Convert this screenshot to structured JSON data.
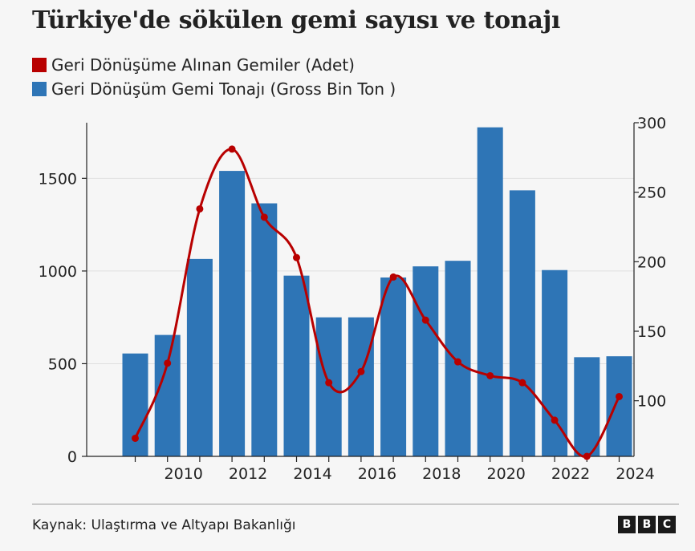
{
  "title": "Türkiye'de sökülen gemi sayısı ve tonajı",
  "legend": [
    {
      "label": "Geri Dönüşüme Alınan Gemiler (Adet)",
      "color": "#b80000"
    },
    {
      "label": "Geri Dönüşüm Gemi Tonajı (Gross Bin Ton )",
      "color": "#2e75b6"
    }
  ],
  "source": "Kaynak: Ulaştırma ve Altyapı Bakanlığı",
  "logo": [
    "B",
    "B",
    "C"
  ],
  "chart_data": {
    "type": "bar+line",
    "x": [
      2009,
      2010,
      2011,
      2012,
      2013,
      2014,
      2015,
      2016,
      2017,
      2018,
      2019,
      2020,
      2021,
      2022,
      2023,
      2024
    ],
    "x_tick_labels": [
      "2010",
      "2012",
      "2014",
      "2016",
      "2018",
      "2020",
      "2022",
      "2024"
    ],
    "series": [
      {
        "name": "Geri Dönüşüm Gemi Tonajı (Gross Bin Ton )",
        "type": "bar",
        "axis": "left",
        "color": "#2e75b6",
        "values": [
          555,
          655,
          1065,
          1540,
          1365,
          975,
          750,
          750,
          965,
          1025,
          1055,
          1775,
          1435,
          1005,
          535,
          540
        ]
      },
      {
        "name": "Geri Dönüşüme Alınan Gemiler (Adet)",
        "type": "line",
        "axis": "right",
        "color": "#b80000",
        "values": [
          73,
          127,
          238,
          281,
          232,
          203,
          113,
          121,
          189,
          158,
          128,
          118,
          113,
          86,
          60,
          103
        ]
      }
    ],
    "left_axis": {
      "ticks": [
        0,
        500,
        1000,
        1500
      ],
      "range": [
        0,
        1800
      ]
    },
    "right_axis": {
      "ticks": [
        100,
        150,
        200,
        250,
        300
      ],
      "range": [
        60,
        300
      ]
    },
    "grid": true
  }
}
